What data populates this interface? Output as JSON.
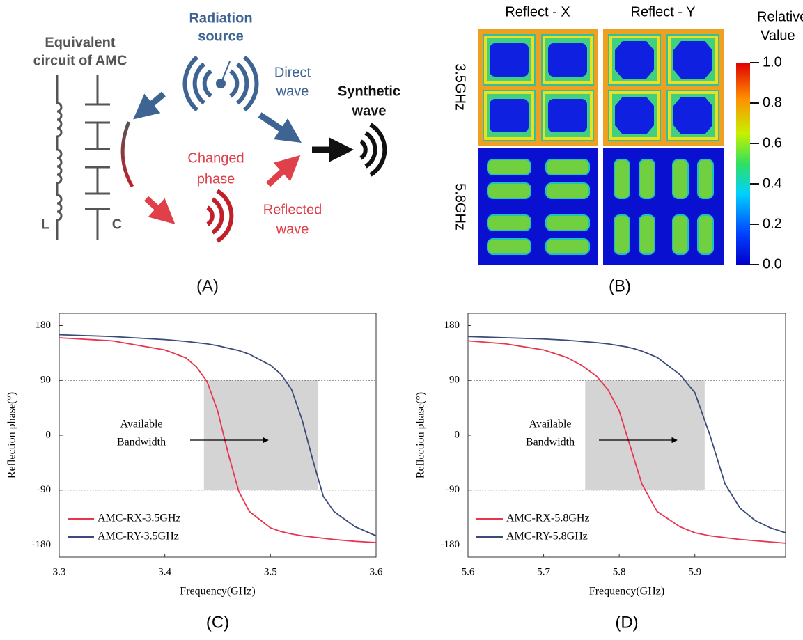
{
  "panel_a": {
    "labels": {
      "circuit": [
        "Equivalent",
        "circuit of AMC"
      ],
      "source": [
        "Radiation",
        "source"
      ],
      "direct": [
        "Direct",
        "wave"
      ],
      "synthetic": [
        "Synthetic",
        "wave"
      ],
      "changed": [
        "Changed",
        "phase"
      ],
      "reflected": [
        "Reflected",
        "wave"
      ],
      "inductor": "L",
      "capacitor": "C"
    },
    "panel_label": "(A)"
  },
  "panel_b": {
    "columns": [
      "Reflect - X",
      "Reflect - Y"
    ],
    "rows": [
      "3.5GHz",
      "5.8GHz"
    ],
    "colorbar": {
      "title": [
        "Relative",
        "Value"
      ],
      "lim": [
        0,
        1
      ],
      "ticks": [
        {
          "value": 1,
          "label": "1.0"
        },
        0.8,
        0.6,
        0.4,
        0.2,
        {
          "value": 0,
          "label": "0.0"
        }
      ]
    },
    "panel_label": "(B)"
  },
  "chart_data": [
    {
      "type": "line",
      "xlabel": "Frequency(GHz)",
      "ylabel": "Reflection phase(°)",
      "xlim": [
        3.3,
        3.6
      ],
      "ylim": [
        -200,
        200
      ],
      "xticks": [
        3.3,
        3.4,
        3.5,
        3.6
      ],
      "yticks": [
        -180,
        -90,
        0,
        90,
        180
      ],
      "x": [
        3.3,
        3.35,
        3.4,
        3.42,
        3.43,
        3.44,
        3.45,
        3.46,
        3.47,
        3.48,
        3.5,
        3.51,
        3.52,
        3.53,
        3.54,
        3.55,
        3.56,
        3.58,
        3.6
      ],
      "series": [
        {
          "name": "AMC-RX-3.5GHz",
          "color": "#e8344e",
          "values": [
            160,
            155,
            140,
            127,
            112,
            88,
            40,
            -30,
            -92,
            -125,
            -152,
            -158,
            -162,
            -165,
            -167,
            -169,
            -171,
            -174,
            -176
          ]
        },
        {
          "name": "AMC-RY-3.5GHz",
          "color": "#3a4a7a",
          "values": [
            165,
            162,
            157,
            154,
            152,
            150,
            147,
            143,
            139,
            133,
            115,
            100,
            75,
            25,
            -40,
            -100,
            -125,
            -150,
            -165
          ]
        }
      ],
      "hlines": [
        -90,
        90
      ],
      "band": {
        "x": [
          3.437,
          3.545
        ],
        "y": [
          -90,
          90
        ]
      },
      "annotation": [
        "Available",
        "Bandwidth"
      ],
      "legend": "lower left",
      "panel_label": "(C)"
    },
    {
      "type": "line",
      "xlabel": "Frequency(GHz)",
      "ylabel": "Reflection phase(°)",
      "xlim": [
        5.6,
        6.02
      ],
      "ylim": [
        -200,
        200
      ],
      "xticks": [
        5.6,
        5.7,
        5.8,
        5.9
      ],
      "yticks": [
        -180,
        -90,
        0,
        90,
        180
      ],
      "x": [
        5.6,
        5.65,
        5.7,
        5.73,
        5.75,
        5.77,
        5.785,
        5.8,
        5.81,
        5.82,
        5.83,
        5.85,
        5.88,
        5.9,
        5.92,
        5.94,
        5.96,
        5.98,
        6.0,
        6.02
      ],
      "series": [
        {
          "name": "AMC-RX-5.8GHz",
          "color": "#e8344e",
          "values": [
            155,
            150,
            140,
            128,
            115,
            97,
            75,
            40,
            0,
            -40,
            -80,
            -125,
            -150,
            -160,
            -165,
            -168,
            -171,
            -173,
            -175,
            -177
          ]
        },
        {
          "name": "AMC-RY-5.8GHz",
          "color": "#3a4a7a",
          "values": [
            162,
            160,
            158,
            156,
            154,
            152,
            150,
            147,
            145,
            142,
            138,
            128,
            100,
            70,
            0,
            -80,
            -120,
            -140,
            -152,
            -160
          ]
        }
      ],
      "hlines": [
        -90,
        90
      ],
      "band": {
        "x": [
          5.755,
          5.913
        ],
        "y": [
          -90,
          90
        ]
      },
      "annotation": [
        "Available",
        "Bandwidth"
      ],
      "legend": "lower left",
      "panel_label": "(D)"
    }
  ]
}
